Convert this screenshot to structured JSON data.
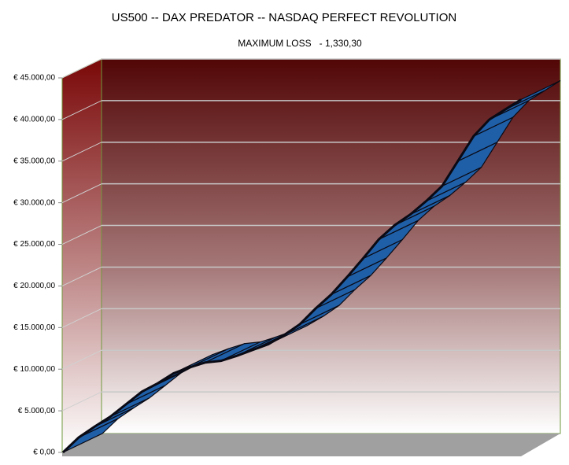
{
  "chart_data": {
    "type": "line3d",
    "title": "US500 -- DAX PREDATOR -- NASDAQ PERFECT REVOLUTION",
    "subtitle": "MAXIMUM LOSS   - 1,330,30",
    "values": [
      0,
      1800,
      3100,
      4300,
      5800,
      7300,
      8300,
      9500,
      10200,
      10800,
      11000,
      11600,
      12300,
      13000,
      14100,
      15400,
      17300,
      19000,
      21100,
      23300,
      25600,
      27300,
      28600,
      30200,
      32000,
      35000,
      38000,
      40000,
      41200,
      42400
    ],
    "color": "#1f5fa8",
    "ylim": [
      0,
      45000
    ],
    "yticks": [
      {
        "value": 0,
        "label": "€ 0,00"
      },
      {
        "value": 5000,
        "label": "€ 5.000,00"
      },
      {
        "value": 10000,
        "label": "€ 10.000,00"
      },
      {
        "value": 15000,
        "label": "€ 15.000,00"
      },
      {
        "value": 20000,
        "label": "€ 20.000,00"
      },
      {
        "value": 25000,
        "label": "€ 25.000,00"
      },
      {
        "value": 30000,
        "label": "€ 30.000,00"
      },
      {
        "value": 35000,
        "label": "€ 35.000,00"
      },
      {
        "value": 40000,
        "label": "€ 40.000,00"
      },
      {
        "value": 45000,
        "label": "€ 45.000,00"
      }
    ],
    "grid": true
  }
}
